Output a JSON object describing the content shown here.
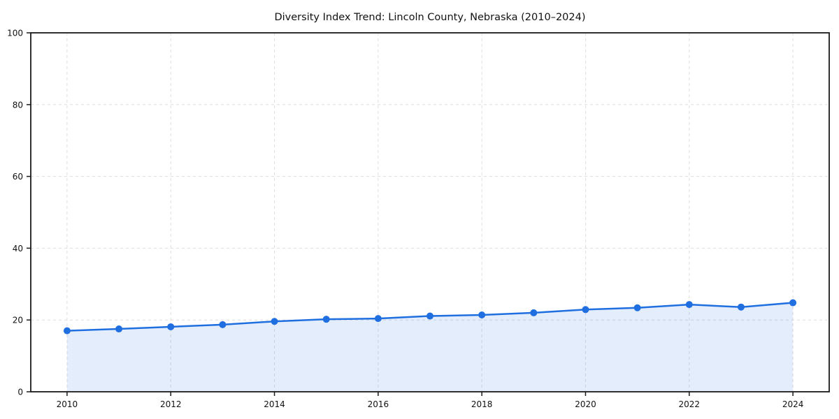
{
  "chart_data": {
    "type": "line",
    "title": "Diversity Index Trend: Lincoln County, Nebraska (2010–2024)",
    "x": [
      2010,
      2011,
      2012,
      2013,
      2014,
      2015,
      2016,
      2017,
      2018,
      2019,
      2020,
      2021,
      2022,
      2023,
      2024
    ],
    "series": [
      {
        "name": "Diversity Index",
        "values": [
          17.0,
          17.5,
          18.1,
          18.7,
          19.6,
          20.2,
          20.4,
          21.1,
          21.4,
          22.0,
          22.9,
          23.4,
          24.3,
          23.6,
          24.8
        ]
      }
    ],
    "xlabel": "",
    "ylabel": "",
    "xlim_years": [
      2010,
      2024
    ],
    "ylim": [
      0,
      100
    ],
    "yticks": [
      0,
      20,
      40,
      60,
      80,
      100
    ],
    "xticks": [
      2010,
      2012,
      2014,
      2016,
      2018,
      2020,
      2022,
      2024
    ],
    "grid": "on",
    "grid_style": "dashed",
    "legend_position": "none",
    "marker": "circle",
    "area_fill": "under-line",
    "colors": {
      "line": "#1f6fe0",
      "marker": "#1f6fe0",
      "area_fill": "rgba(31,111,224,0.12)",
      "grid": "#dedede",
      "spine": "#1a1a1a",
      "tick_text": "#111111",
      "background": "#ffffff"
    }
  }
}
